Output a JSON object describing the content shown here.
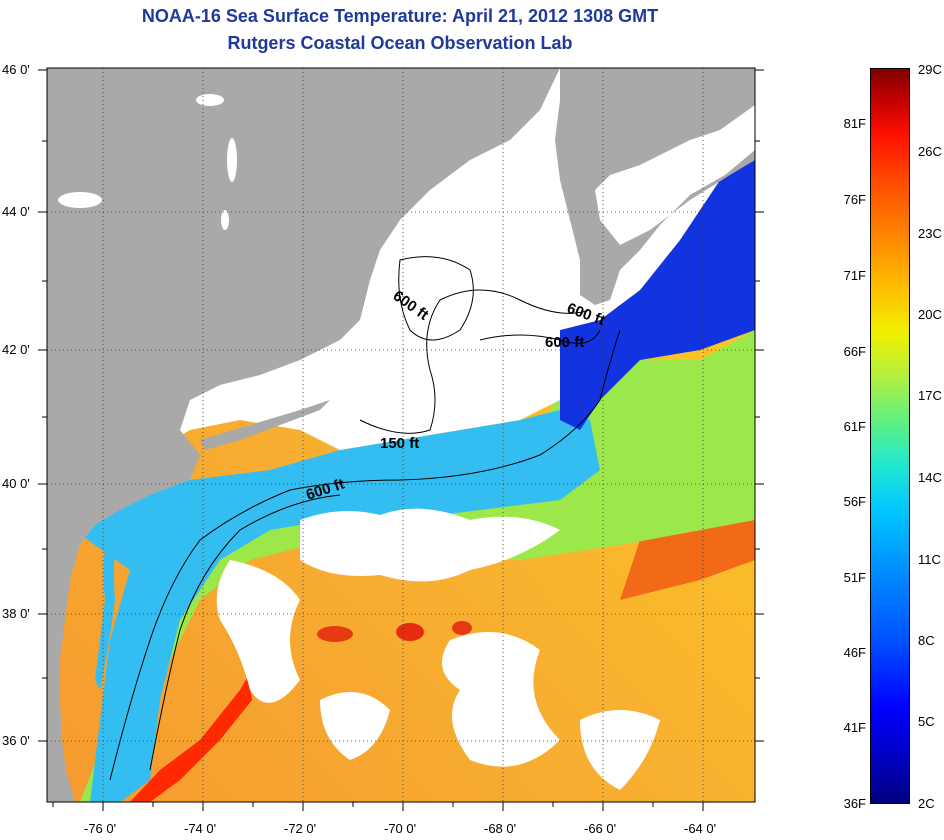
{
  "title": {
    "line1": "NOAA-16 Sea Surface Temperature:  April 21, 2012 1308 GMT",
    "line2": "Rutgers Coastal Ocean Observation Lab"
  },
  "map": {
    "lat_labels": [
      "46 0'",
      "44 0'",
      "42 0'",
      "40 0'",
      "38 0'",
      "36 0'"
    ],
    "lon_labels": [
      "-76 0'",
      "-74 0'",
      "-72 0'",
      "-70 0'",
      "-68 0'",
      "-66 0'",
      "-64 0'"
    ],
    "contour_labels": [
      "600 ft",
      "600 ft",
      "600 ft",
      "150 ft",
      "600 ft"
    ],
    "colors": {
      "land": "#a9a9a9",
      "cloud": "#ffffff",
      "warm": "#f07a20",
      "gulf_stream": "#ff2a00",
      "cold": "#1030e0",
      "shelf": "#30b0f0"
    }
  },
  "colorbar": {
    "celsius_labels": [
      "29C",
      "26C",
      "23C",
      "20C",
      "17C",
      "14C",
      "11C",
      "8C",
      "5C",
      "2C"
    ],
    "fahrenheit_labels": [
      "81F",
      "76F",
      "71F",
      "66F",
      "61F",
      "56F",
      "51F",
      "46F",
      "41F",
      "36F"
    ],
    "range_c": [
      2,
      29
    ],
    "range_f": [
      36,
      84
    ]
  }
}
